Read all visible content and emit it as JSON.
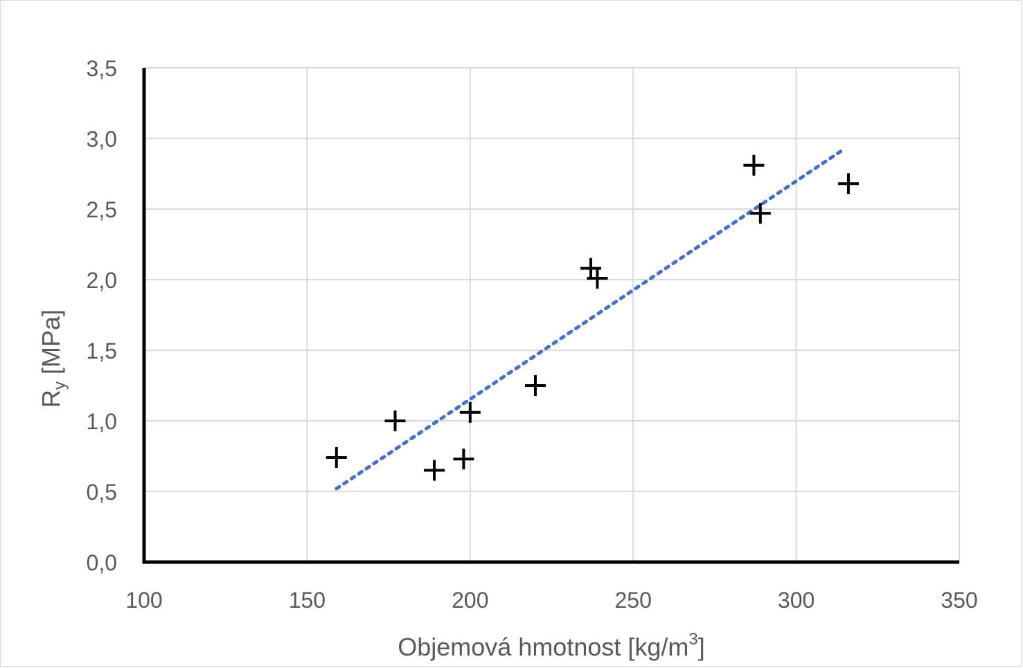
{
  "chart_data": {
    "type": "scatter",
    "xlabel": "Objemová hmotnost [kg/m",
    "xlabel_sup": "3",
    "xlabel_end": "]",
    "ylabel": "R",
    "ylabel_sub": "y",
    "ylabel_end": " [MPa]",
    "xlim": [
      100,
      350
    ],
    "ylim": [
      0,
      3.5
    ],
    "x_ticks": [
      100,
      150,
      200,
      250,
      300,
      350
    ],
    "x_tick_labels": [
      "100",
      "150",
      "200",
      "250",
      "300",
      "350"
    ],
    "y_ticks": [
      0,
      0.5,
      1.0,
      1.5,
      2.0,
      2.5,
      3.0,
      3.5
    ],
    "y_tick_labels": [
      "0,0",
      "0,5",
      "1,0",
      "1,5",
      "2,0",
      "2,5",
      "3,0",
      "3,5"
    ],
    "grid": true,
    "marker": "plus",
    "marker_color": "#000000",
    "points": [
      {
        "x": 159,
        "y": 0.74
      },
      {
        "x": 177,
        "y": 1.0
      },
      {
        "x": 189,
        "y": 0.65
      },
      {
        "x": 198,
        "y": 0.73
      },
      {
        "x": 200,
        "y": 1.06
      },
      {
        "x": 220,
        "y": 1.25
      },
      {
        "x": 237,
        "y": 2.08
      },
      {
        "x": 239,
        "y": 2.01
      },
      {
        "x": 287,
        "y": 2.81
      },
      {
        "x": 289,
        "y": 2.47
      },
      {
        "x": 316,
        "y": 2.68
      }
    ],
    "trendline": {
      "type": "linear",
      "style": "dotted",
      "color": "#4472c4",
      "x": [
        159,
        315
      ],
      "y": [
        0.52,
        2.93
      ]
    }
  }
}
